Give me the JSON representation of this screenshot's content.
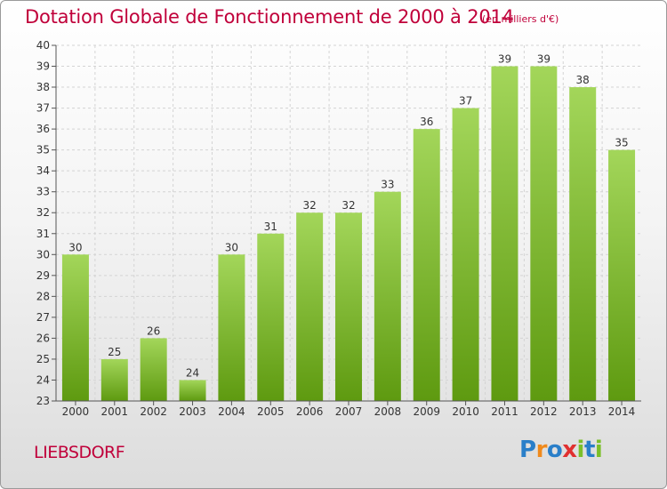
{
  "header": {
    "title": "Dotation Globale de Fonctionnement de 2000 à 2014",
    "subtitle": "(en milliers d'€)"
  },
  "footer": {
    "commune": "LIEBSDORF",
    "logo_text": "Proxiti",
    "logo_letters": [
      {
        "ch": "P",
        "color": "#2a7fc9"
      },
      {
        "ch": "r",
        "color": "#f08a1c"
      },
      {
        "ch": "o",
        "color": "#2a7fc9"
      },
      {
        "ch": "x",
        "color": "#e03030"
      },
      {
        "ch": "i",
        "color": "#7bbf2a"
      },
      {
        "ch": "t",
        "color": "#2a7fc9"
      },
      {
        "ch": "i",
        "color": "#7bbf2a"
      }
    ]
  },
  "colors": {
    "accent": "#c0003a",
    "bar_light": "#a3d65a",
    "bar_dark": "#5e9a10"
  },
  "chart_data": {
    "type": "bar",
    "categories": [
      "2000",
      "2001",
      "2002",
      "2003",
      "2004",
      "2005",
      "2006",
      "2007",
      "2008",
      "2009",
      "2010",
      "2011",
      "2012",
      "2013",
      "2014"
    ],
    "values": [
      30,
      25,
      26,
      24,
      30,
      31,
      32,
      32,
      33,
      36,
      37,
      39,
      39,
      38,
      35
    ],
    "ylim": [
      23,
      40
    ],
    "yticks": [
      23,
      24,
      25,
      26,
      27,
      28,
      29,
      30,
      31,
      32,
      33,
      34,
      35,
      36,
      37,
      38,
      39,
      40
    ],
    "grid": true,
    "data_labels": true
  }
}
